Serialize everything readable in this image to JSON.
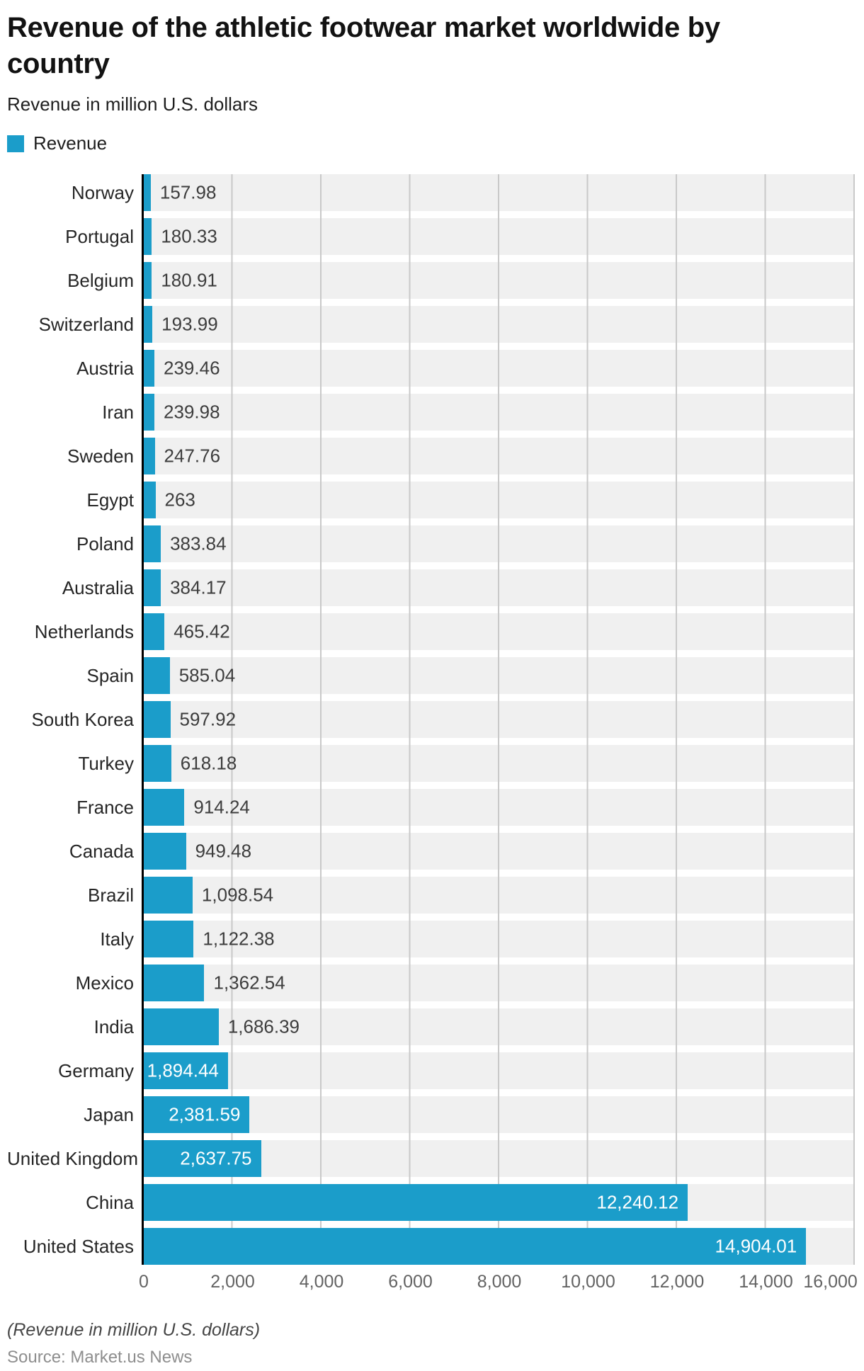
{
  "header": {
    "title": "Revenue of the athletic footwear market worldwide by country",
    "subtitle": "Revenue in million U.S. dollars"
  },
  "legend": {
    "items": [
      {
        "label": "Revenue",
        "color": "#1b9dca"
      }
    ]
  },
  "chart_data": {
    "type": "bar",
    "orientation": "horizontal",
    "title": "Revenue of the athletic footwear market worldwide by country",
    "xlabel": "Revenue in million U.S. dollars",
    "series_name": "Revenue",
    "categories": [
      "Norway",
      "Portugal",
      "Belgium",
      "Switzerland",
      "Austria",
      "Iran",
      "Sweden",
      "Egypt",
      "Poland",
      "Australia",
      "Netherlands",
      "Spain",
      "South Korea",
      "Turkey",
      "France",
      "Canada",
      "Brazil",
      "Italy",
      "Mexico",
      "India",
      "Germany",
      "Japan",
      "United Kingdom",
      "China",
      "United States"
    ],
    "values": [
      157.98,
      180.33,
      180.91,
      193.99,
      239.46,
      239.98,
      247.76,
      263,
      383.84,
      384.17,
      465.42,
      585.04,
      597.92,
      618.18,
      914.24,
      949.48,
      1098.54,
      1122.38,
      1362.54,
      1686.39,
      1894.44,
      2381.59,
      2637.75,
      12240.12,
      14904.01
    ],
    "value_labels": [
      "157.98",
      "180.33",
      "180.91",
      "193.99",
      "239.46",
      "239.98",
      "247.76",
      "263",
      "383.84",
      "384.17",
      "465.42",
      "585.04",
      "597.92",
      "618.18",
      "914.24",
      "949.48",
      "1,098.54",
      "1,122.38",
      "1,362.54",
      "1,686.39",
      "1,894.44",
      "2,381.59",
      "2,637.75",
      "12,240.12",
      "14,904.01"
    ],
    "labels_inside": [
      false,
      false,
      false,
      false,
      false,
      false,
      false,
      false,
      false,
      false,
      false,
      false,
      false,
      false,
      false,
      false,
      false,
      false,
      false,
      false,
      true,
      true,
      true,
      true,
      true
    ],
    "xlim": [
      0,
      16000
    ],
    "x_ticks": [
      "0",
      "2,000",
      "4,000",
      "6,000",
      "8,000",
      "10,000",
      "12,000",
      "14,000",
      "16,000"
    ],
    "grid": true,
    "legend_position": "top-left",
    "bar_color": "#1b9dca",
    "band_color": "#f0f0f0"
  },
  "footer": {
    "note": "(Revenue in million U.S. dollars)",
    "source": "Source: Market.us News"
  }
}
